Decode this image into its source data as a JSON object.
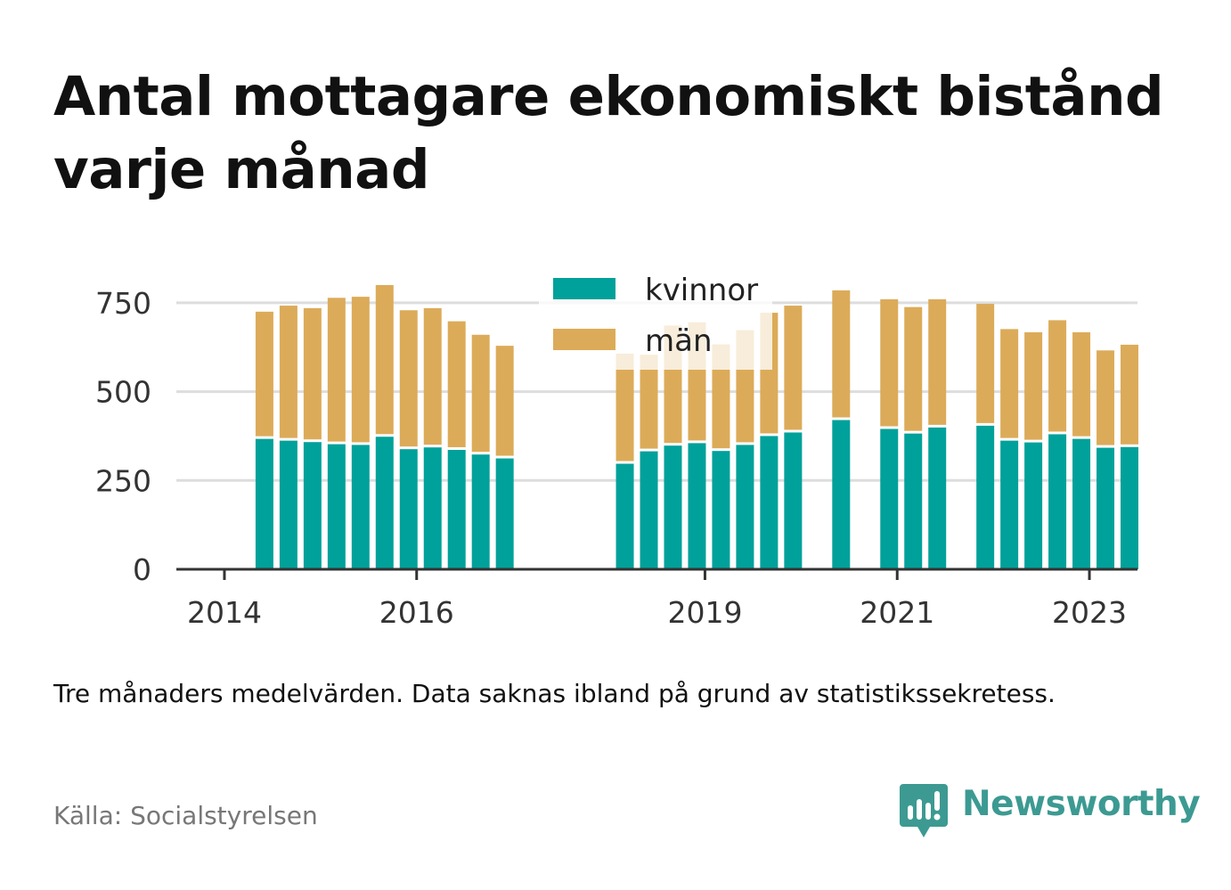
{
  "colors": {
    "kvinnor": "#00a19a",
    "man": "#dcab59",
    "grid": "#dddddd",
    "axis": "#333333",
    "brand": "#3c9a92"
  },
  "source": "Källa: Socialstyrelsen",
  "brand": {
    "name": "Newsworthy",
    "icon": "bar-chart-speech-bubble-icon"
  },
  "chart_data": {
    "type": "bar",
    "stacked": true,
    "title": "Antal mottagare ekonomiskt bistånd varje månad",
    "note": "Tre månaders medelvärden. Data saknas ibland på grund av statistikssekretess.",
    "xlabel": "",
    "ylabel": "",
    "ylim": [
      0,
      850
    ],
    "yticks": [
      0,
      250,
      500,
      750
    ],
    "xticks": [
      {
        "date": "2014-01",
        "label": "2014"
      },
      {
        "date": "2016-01",
        "label": "2016"
      },
      {
        "date": "2019-01",
        "label": "2019"
      },
      {
        "date": "2021-01",
        "label": "2021"
      },
      {
        "date": "2023-01",
        "label": "2023"
      }
    ],
    "x_range": [
      "2013-07",
      "2023-07"
    ],
    "grid": true,
    "legend_position": "top-center",
    "series": [
      {
        "name": "kvinnor",
        "color": "#00a19a"
      },
      {
        "name": "män",
        "color": "#dcab59"
      }
    ],
    "bars": [
      {
        "date": "2014-05",
        "kvinnor": 367,
        "man": 358
      },
      {
        "date": "2014-08",
        "kvinnor": 362,
        "man": 380
      },
      {
        "date": "2014-11",
        "kvinnor": 358,
        "man": 377
      },
      {
        "date": "2015-02",
        "kvinnor": 352,
        "man": 412
      },
      {
        "date": "2015-05",
        "kvinnor": 350,
        "man": 417
      },
      {
        "date": "2015-08",
        "kvinnor": 373,
        "man": 427
      },
      {
        "date": "2015-11",
        "kvinnor": 338,
        "man": 391
      },
      {
        "date": "2016-02",
        "kvinnor": 343,
        "man": 392
      },
      {
        "date": "2016-05",
        "kvinnor": 336,
        "man": 362
      },
      {
        "date": "2016-08",
        "kvinnor": 323,
        "man": 337
      },
      {
        "date": "2016-11",
        "kvinnor": 312,
        "man": 317
      },
      {
        "date": "2018-02",
        "kvinnor": 297,
        "man": 310
      },
      {
        "date": "2018-05",
        "kvinnor": 332,
        "man": 272
      },
      {
        "date": "2018-08",
        "kvinnor": 348,
        "man": 338
      },
      {
        "date": "2018-11",
        "kvinnor": 355,
        "man": 340
      },
      {
        "date": "2019-02",
        "kvinnor": 333,
        "man": 300
      },
      {
        "date": "2019-05",
        "kvinnor": 350,
        "man": 323
      },
      {
        "date": "2019-08",
        "kvinnor": 375,
        "man": 347
      },
      {
        "date": "2019-11",
        "kvinnor": 385,
        "man": 357
      },
      {
        "date": "2020-05",
        "kvinnor": 420,
        "man": 365
      },
      {
        "date": "2020-11",
        "kvinnor": 395,
        "man": 365
      },
      {
        "date": "2021-02",
        "kvinnor": 382,
        "man": 356
      },
      {
        "date": "2021-05",
        "kvinnor": 399,
        "man": 361
      },
      {
        "date": "2021-11",
        "kvinnor": 404,
        "man": 343
      },
      {
        "date": "2022-02",
        "kvinnor": 362,
        "man": 314
      },
      {
        "date": "2022-05",
        "kvinnor": 357,
        "man": 310
      },
      {
        "date": "2022-08",
        "kvinnor": 380,
        "man": 321
      },
      {
        "date": "2022-11",
        "kvinnor": 367,
        "man": 300
      },
      {
        "date": "2023-02",
        "kvinnor": 342,
        "man": 274
      },
      {
        "date": "2023-05",
        "kvinnor": 344,
        "man": 288
      }
    ]
  }
}
